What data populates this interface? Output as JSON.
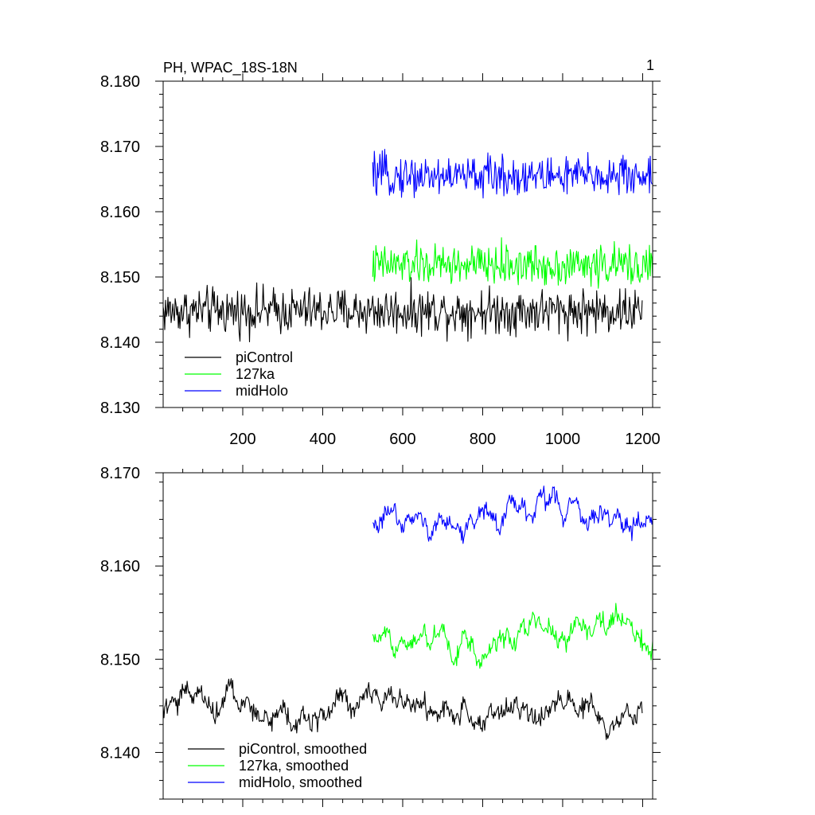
{
  "colors": {
    "piControl": "#000000",
    "127ka": "#00ff00",
    "midHolo": "#0000ff"
  },
  "chart_data": [
    {
      "type": "line",
      "title": "PH, WPAC_18S-18N",
      "page_label": "1",
      "xlim": [
        1,
        1225
      ],
      "ylim": [
        8.13,
        8.18
      ],
      "yticks": [
        "8.130",
        "8.140",
        "8.150",
        "8.160",
        "8.170",
        "8.180"
      ],
      "xticks": [
        "200",
        "400",
        "600",
        "800",
        "1000",
        "1200"
      ],
      "legend_position": "bottom-left",
      "series": [
        {
          "name": "piControl",
          "color": "#000000",
          "x_start": 1,
          "x_end": 1200,
          "mean": 8.1448,
          "sd": 0.0025,
          "smoothed": false
        },
        {
          "name": "127ka",
          "color": "#00ff00",
          "x_start": 525,
          "x_end": 1225,
          "mean": 8.1518,
          "sd": 0.0022,
          "smoothed": false
        },
        {
          "name": "midHolo",
          "color": "#0000ff",
          "x_start": 525,
          "x_end": 1225,
          "mean": 8.1655,
          "sd": 0.0022,
          "smoothed": false
        }
      ]
    },
    {
      "type": "line",
      "xlim": [
        1,
        1225
      ],
      "ylim": [
        8.135,
        8.17
      ],
      "yticks": [
        "8.140",
        "8.150",
        "8.160",
        "8.170"
      ],
      "legend_position": "bottom-left",
      "series": [
        {
          "name": "piControl, smoothed",
          "color": "#000000",
          "x_start": 1,
          "x_end": 1200,
          "mean": 8.1448,
          "sd": 0.0016,
          "smoothed": true
        },
        {
          "name": "127ka, smoothed",
          "color": "#00ff00",
          "x_start": 525,
          "x_end": 1225,
          "mean": 8.1523,
          "sd": 0.0014,
          "smoothed": true
        },
        {
          "name": "midHolo, smoothed",
          "color": "#0000ff",
          "x_start": 525,
          "x_end": 1225,
          "mean": 8.1652,
          "sd": 0.0014,
          "smoothed": true
        }
      ]
    }
  ]
}
